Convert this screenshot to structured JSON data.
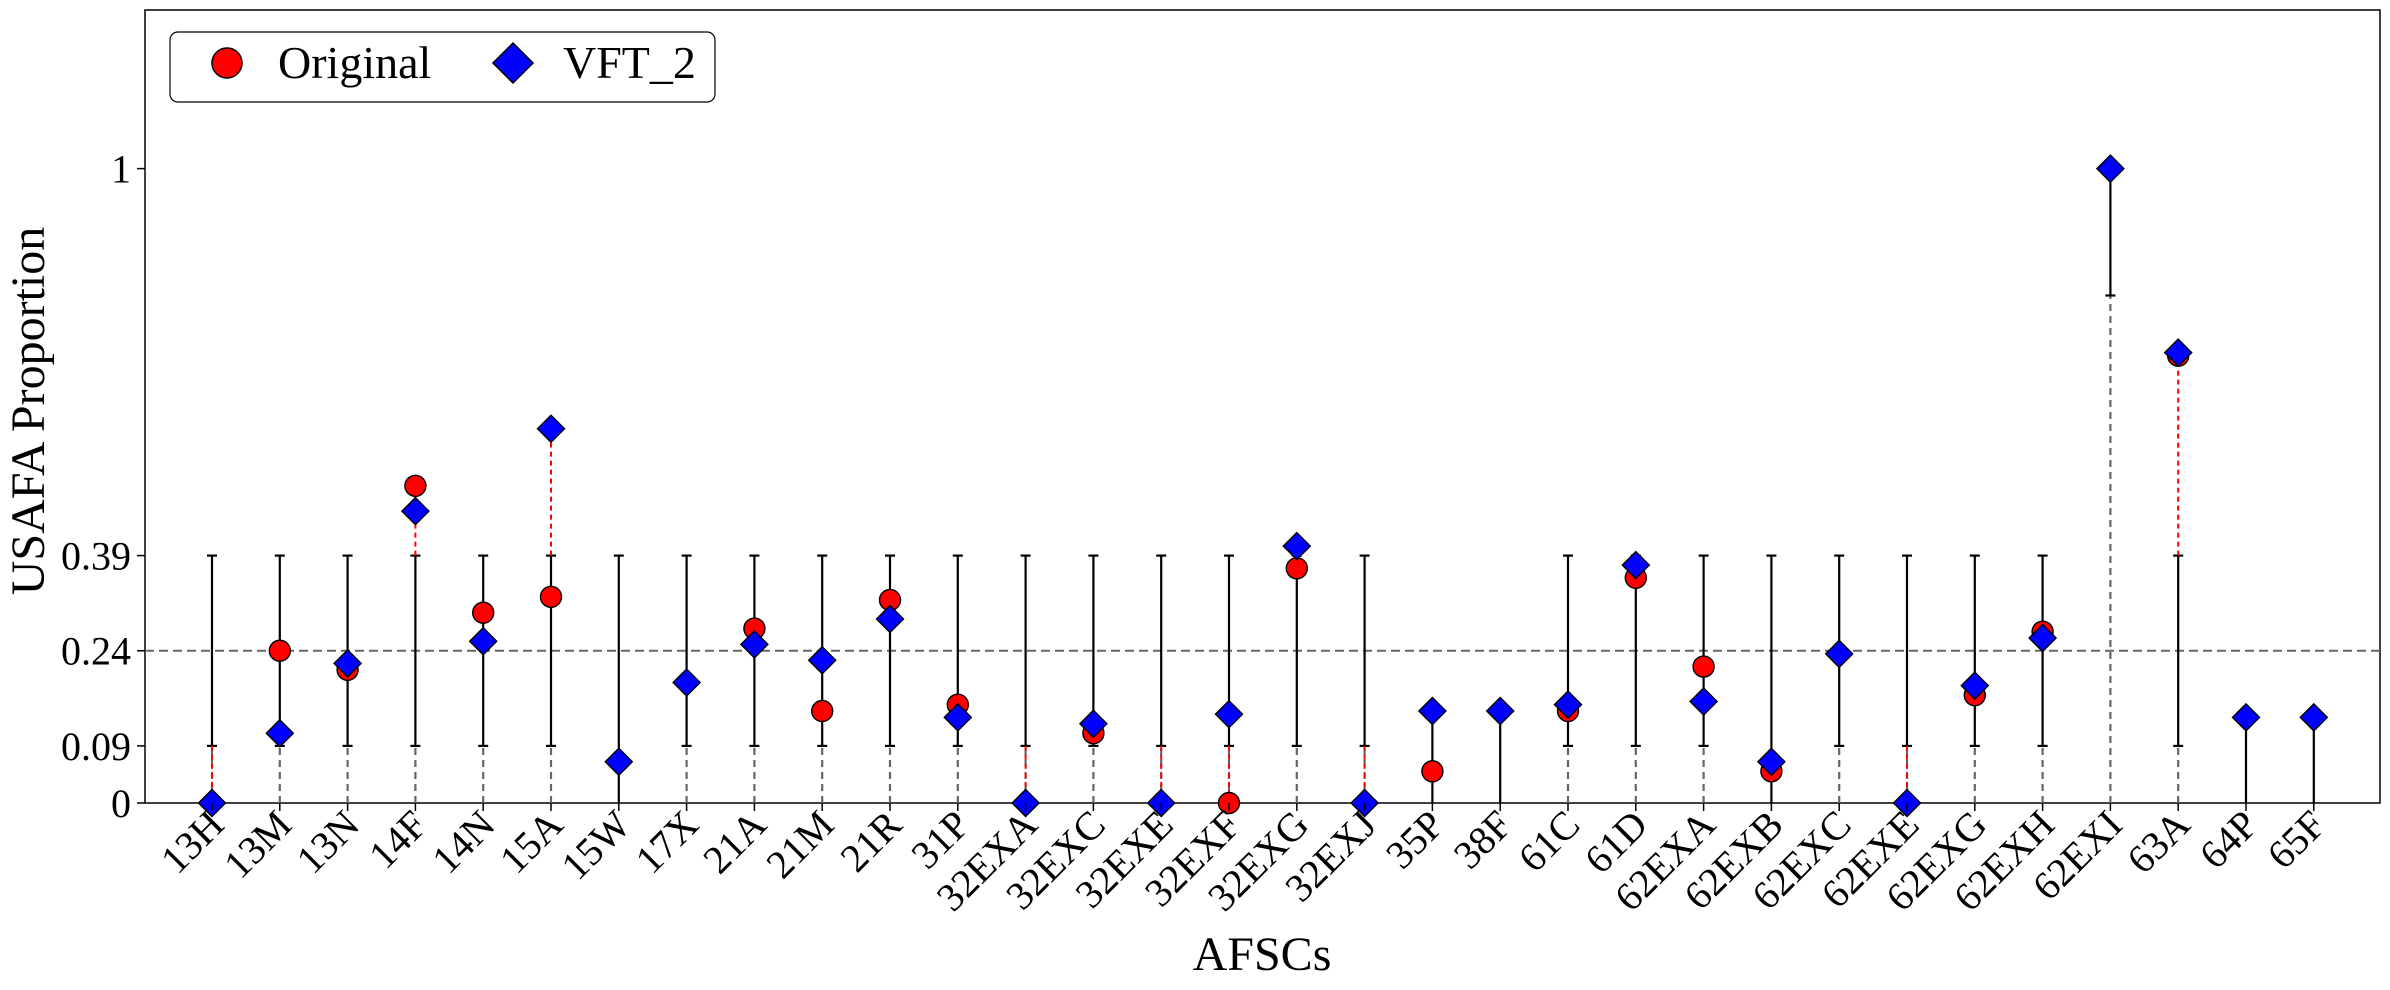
{
  "chart_data": {
    "type": "scatter",
    "xlabel": "AFSCs",
    "ylabel": "USAFA Proportion",
    "ylim": [
      0,
      1.25
    ],
    "yticks": [
      0,
      0.09,
      0.24,
      0.39,
      1
    ],
    "ytick_labels": [
      "0",
      "0.09",
      "0.24",
      "0.39",
      "1"
    ],
    "reference_line": 0.24,
    "legend_position": "top-left",
    "categories": [
      "13H",
      "13M",
      "13N",
      "14F",
      "14N",
      "15A",
      "15W",
      "17X",
      "21A",
      "21M",
      "21R",
      "31P",
      "32EXA",
      "32EXC",
      "32EXE",
      "32EXF",
      "32EXG",
      "32EXJ",
      "35P",
      "38F",
      "61C",
      "61D",
      "62EXA",
      "62EXB",
      "62EXC",
      "62EXE",
      "62EXG",
      "62EXH",
      "62EXI",
      "63A",
      "64P",
      "65F"
    ],
    "bounds": [
      [
        0.09,
        0.39
      ],
      [
        0.09,
        0.39
      ],
      [
        0.09,
        0.39
      ],
      [
        0.09,
        0.39
      ],
      [
        0.09,
        0.39
      ],
      [
        0.09,
        0.39
      ],
      [
        0,
        0.39
      ],
      [
        0.09,
        0.39
      ],
      [
        0.09,
        0.39
      ],
      [
        0.09,
        0.39
      ],
      [
        0.09,
        0.39
      ],
      [
        0.09,
        0.39
      ],
      [
        0.09,
        0.39
      ],
      [
        0.09,
        0.39
      ],
      [
        0.09,
        0.39
      ],
      [
        0.09,
        0.39
      ],
      [
        0.09,
        0.39
      ],
      [
        0.09,
        0.39
      ],
      [
        0,
        0.14
      ],
      [
        0,
        0.15
      ],
      [
        0.09,
        0.39
      ],
      [
        0.09,
        0.39
      ],
      [
        0.09,
        0.39
      ],
      [
        0,
        0.39
      ],
      [
        0.09,
        0.39
      ],
      [
        0.09,
        0.39
      ],
      [
        0.09,
        0.39
      ],
      [
        0.09,
        0.39
      ],
      [
        0.8,
        1.0
      ],
      [
        0.09,
        0.39
      ],
      [
        0,
        0.14
      ],
      [
        0,
        0.14
      ]
    ],
    "series": [
      {
        "name": "Original",
        "marker": "circle",
        "color": "#ff0000",
        "values": [
          null,
          0.24,
          0.21,
          0.5,
          0.3,
          0.325,
          null,
          null,
          0.275,
          0.145,
          0.32,
          0.155,
          null,
          0.11,
          null,
          0.0,
          0.37,
          null,
          0.05,
          null,
          0.145,
          0.355,
          0.215,
          0.05,
          null,
          null,
          0.17,
          0.27,
          null,
          0.705,
          null,
          null
        ]
      },
      {
        "name": "VFT_2",
        "marker": "diamond",
        "color": "#0000ff",
        "values": [
          0.0,
          0.11,
          0.22,
          0.46,
          0.255,
          0.59,
          0.065,
          0.19,
          0.25,
          0.225,
          0.29,
          0.135,
          0.0,
          0.125,
          0.0,
          0.14,
          0.405,
          0.0,
          0.145,
          0.145,
          0.155,
          0.375,
          0.16,
          0.065,
          0.235,
          0.0,
          0.185,
          0.26,
          1.0,
          0.71,
          0.135,
          0.135
        ]
      }
    ]
  }
}
